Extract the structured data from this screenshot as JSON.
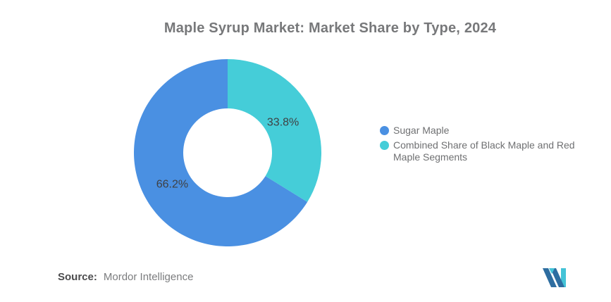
{
  "chart_data": {
    "type": "pie",
    "subtype": "donut",
    "title": "Maple Syrup Market: Market Share by Type, 2024",
    "series": [
      {
        "name": "Sugar Maple",
        "value": 66.2,
        "label": "66.2%",
        "color": "#4A90E2"
      },
      {
        "name": "Combined Share of Black Maple and Red Maple Segments",
        "value": 33.8,
        "label": "33.8%",
        "color": "#45CDD8"
      }
    ],
    "units": "%",
    "start_angle": "top",
    "direction": "counterclockwise",
    "legend_position": "right",
    "inner_radius_ratio": 0.47
  },
  "source": {
    "prefix": "Source:",
    "text": "Mordor Intelligence"
  },
  "logo": {
    "name": "mordor-intelligence-logo",
    "navy": "#2E6DA0",
    "teal": "#44C3D7"
  }
}
